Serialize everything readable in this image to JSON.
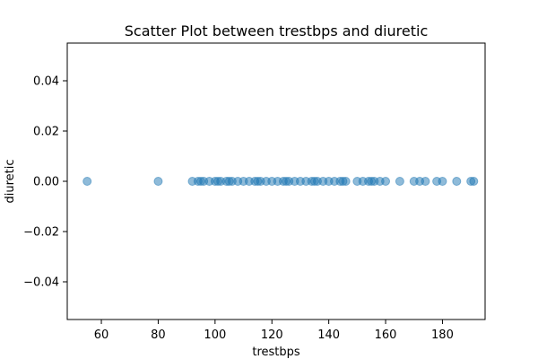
{
  "chart_data": {
    "type": "scatter",
    "title": "Scatter Plot between trestbps and diuretic",
    "xlabel": "trestbps",
    "ylabel": "diuretic",
    "xlim": [
      48,
      195
    ],
    "ylim": [
      -0.055,
      0.055
    ],
    "xticks": [
      60,
      80,
      100,
      120,
      140,
      160,
      180
    ],
    "yticks": [
      -0.04,
      -0.02,
      0.0,
      0.02,
      0.04
    ],
    "ytick_labels": [
      "−0.04",
      "−0.02",
      "0.00",
      "0.02",
      "0.04"
    ],
    "grid": false,
    "marker_color": "#1f77b4",
    "marker_alpha": 0.5,
    "points": [
      [
        55,
        0
      ],
      [
        80,
        0
      ],
      [
        92,
        0
      ],
      [
        94,
        0
      ],
      [
        95,
        0
      ],
      [
        96,
        0
      ],
      [
        98,
        0
      ],
      [
        100,
        0
      ],
      [
        101,
        0
      ],
      [
        102,
        0
      ],
      [
        104,
        0
      ],
      [
        105,
        0
      ],
      [
        106,
        0
      ],
      [
        108,
        0
      ],
      [
        110,
        0
      ],
      [
        112,
        0
      ],
      [
        114,
        0
      ],
      [
        115,
        0
      ],
      [
        116,
        0
      ],
      [
        118,
        0
      ],
      [
        120,
        0
      ],
      [
        122,
        0
      ],
      [
        124,
        0
      ],
      [
        125,
        0
      ],
      [
        126,
        0
      ],
      [
        128,
        0
      ],
      [
        130,
        0
      ],
      [
        132,
        0
      ],
      [
        134,
        0
      ],
      [
        135,
        0
      ],
      [
        136,
        0
      ],
      [
        138,
        0
      ],
      [
        140,
        0
      ],
      [
        142,
        0
      ],
      [
        144,
        0
      ],
      [
        145,
        0
      ],
      [
        146,
        0
      ],
      [
        150,
        0
      ],
      [
        152,
        0
      ],
      [
        154,
        0
      ],
      [
        155,
        0
      ],
      [
        156,
        0
      ],
      [
        158,
        0
      ],
      [
        160,
        0
      ],
      [
        165,
        0
      ],
      [
        170,
        0
      ],
      [
        172,
        0
      ],
      [
        174,
        0
      ],
      [
        178,
        0
      ],
      [
        180,
        0
      ],
      [
        185,
        0
      ],
      [
        190,
        0
      ],
      [
        191,
        0
      ]
    ]
  }
}
